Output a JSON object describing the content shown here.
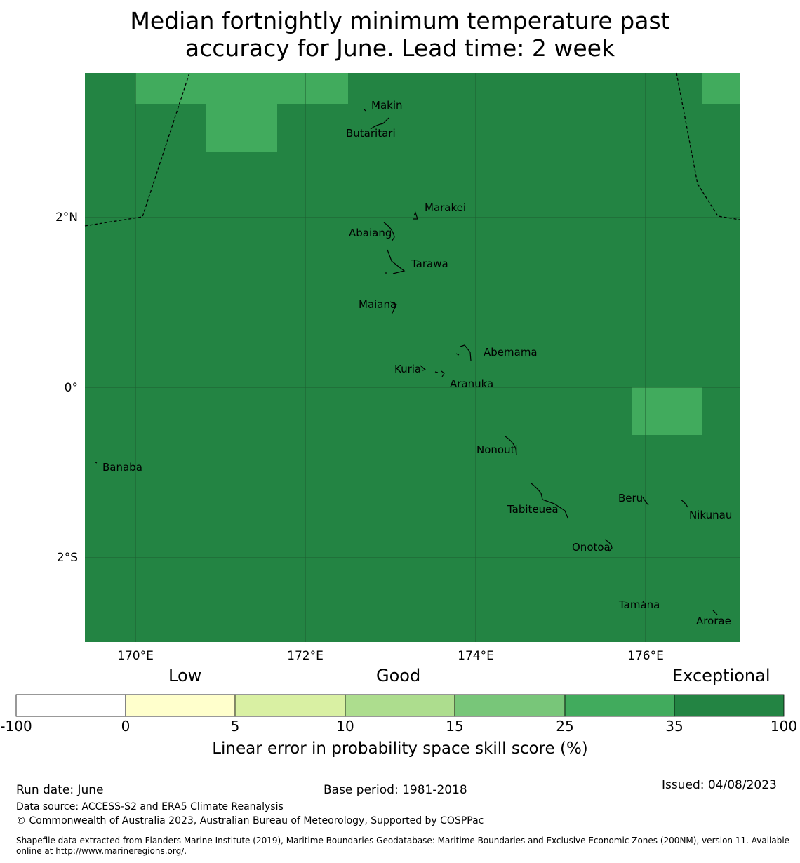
{
  "title": {
    "line1": "Median fortnightly minimum temperature past",
    "line2": "accuracy for June. Lead time: 2 week"
  },
  "map": {
    "lat_labels": [
      "2°N",
      "0°",
      "2°S"
    ],
    "lon_labels": [
      "170°E",
      "172°E",
      "174°E",
      "176°E"
    ],
    "islands": [
      "Makin",
      "Butaritari",
      "Marakei",
      "Abaiang",
      "Tarawa",
      "Maiana",
      "Abemama",
      "Kuria",
      "Aranuka",
      "Nonouti",
      "Banaba",
      "Beru",
      "Nikunau",
      "Tabiteuea",
      "Onotoa",
      "Tamana",
      "Arorae"
    ],
    "colors": {
      "exceptional": "#238443",
      "good_high": "#41ab5d",
      "grid": "#1d5e30"
    }
  },
  "colorbar": {
    "categories": [
      "Low",
      "Good",
      "Exceptional"
    ],
    "ticks": [
      "-100",
      "0",
      "5",
      "10",
      "15",
      "25",
      "35",
      "100"
    ],
    "colors": [
      "#ffffff",
      "#ffffcc",
      "#d9f0a3",
      "#addd8e",
      "#78c679",
      "#41ab5d",
      "#238443"
    ],
    "label": "Linear error in probability space skill score (%)"
  },
  "footer": {
    "run_date": "Run date: June",
    "base_period": "Base period: 1981-2018",
    "issued": "Issued: 04/08/2023",
    "data_source": "Data source: ACCESS-S2 and ERA5 Climate Reanalysis",
    "copyright": "© Commonwealth of Australia 2023, Australian Bureau of Meteorology, Supported by COSPPac",
    "shapefile_line1": "Shapefile data extracted from Flanders Marine Institute (2019), Maritime Boundaries Geodatabase: Maritime Boundaries and Exclusive Economic Zones (200NM), version 11. Available",
    "shapefile_line2": "online at http://www.marineregions.org/."
  }
}
